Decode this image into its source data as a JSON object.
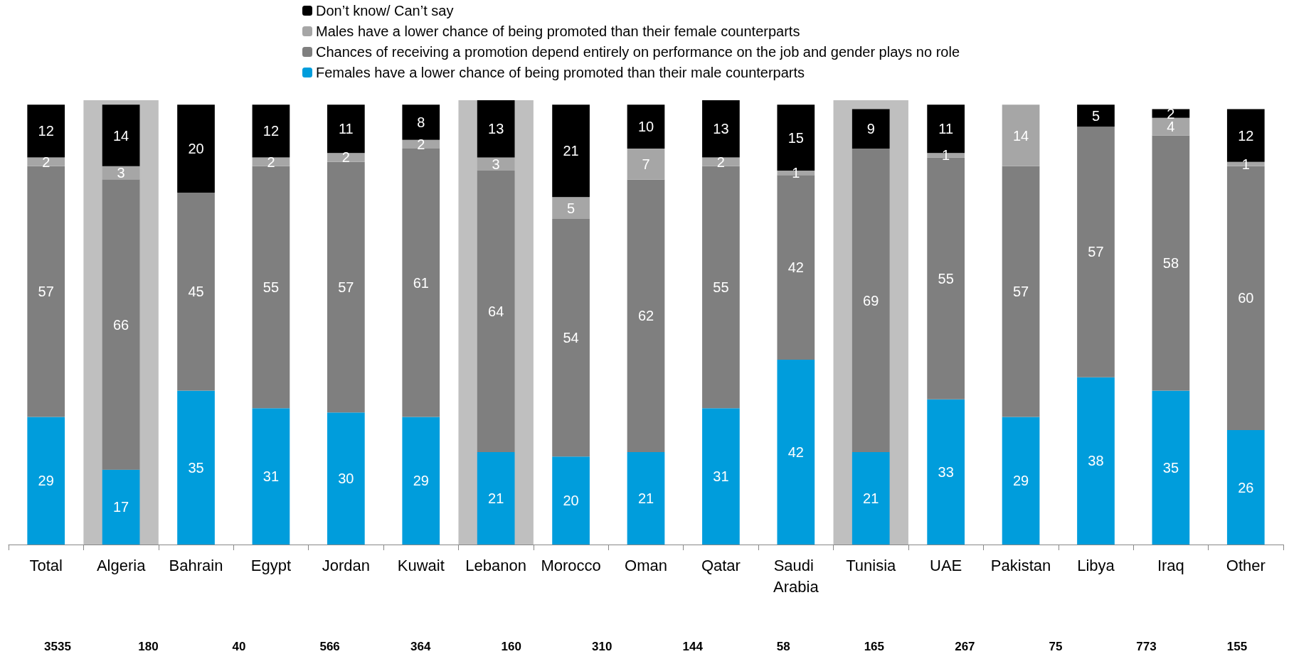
{
  "chart_data": {
    "type": "bar",
    "stacked": true,
    "data_labels": true,
    "legend": "top",
    "categories": [
      "Total",
      "Algeria",
      "Bahrain",
      "Egypt",
      "Jordan",
      "Kuwait",
      "Lebanon",
      "Morocco",
      "Oman",
      "Qatar",
      "Saudi Arabia",
      "Tunisia",
      "UAE",
      "Pakistan",
      "Libya",
      "Iraq",
      "Other"
    ],
    "series": [
      {
        "name": "Females have a lower chance of being promoted than their male counterparts",
        "color": "#009ddc",
        "values": [
          29,
          17,
          35,
          31,
          30,
          29,
          21,
          20,
          21,
          31,
          42,
          21,
          33,
          29,
          38,
          35,
          26
        ]
      },
      {
        "name": "Chances of receiving a promotion depend entirely on performance on the job and gender plays no role",
        "color": "#7f7f7f",
        "values": [
          57,
          66,
          45,
          55,
          57,
          61,
          64,
          54,
          62,
          55,
          42,
          69,
          55,
          57,
          57,
          58,
          60
        ]
      },
      {
        "name": "Males have a lower chance of being promoted than their female counterparts",
        "color": "#a6a6a6",
        "values": [
          2,
          3,
          null,
          2,
          2,
          2,
          3,
          5,
          7,
          2,
          1,
          null,
          1,
          14,
          null,
          4,
          1
        ]
      },
      {
        "name": "Don’t know/ Can’t say",
        "color": "#000000",
        "values": [
          12,
          14,
          20,
          12,
          11,
          8,
          13,
          21,
          10,
          13,
          15,
          9,
          11,
          null,
          5,
          2,
          12
        ]
      }
    ],
    "bands": [
      {
        "axis": "x",
        "from": "Algeria",
        "to": "Algeria",
        "color": "#bfbfbf"
      },
      {
        "axis": "x",
        "from": "Lebanon",
        "to": "Lebanon",
        "color": "#bfbfbf"
      },
      {
        "axis": "x",
        "from": "Tunisia",
        "to": "Tunisia",
        "color": "#bfbfbf"
      }
    ],
    "annotations": [
      "3535",
      "180",
      "40",
      "566",
      "364",
      "160",
      "310",
      "144",
      "58",
      "165",
      "267",
      "75",
      "773",
      "155"
    ]
  }
}
